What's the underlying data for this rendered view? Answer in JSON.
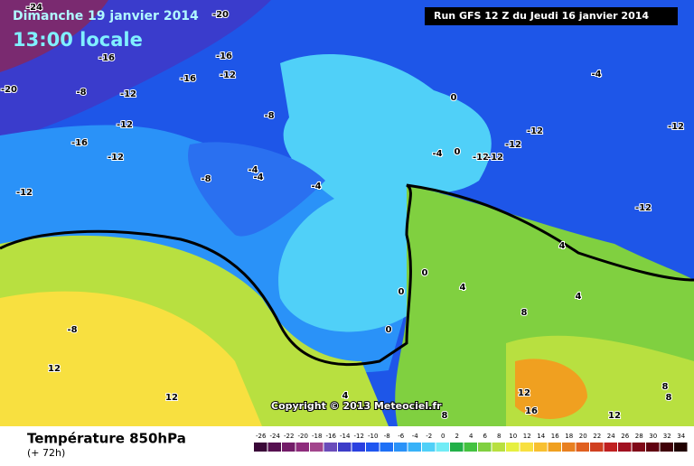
{
  "header": {
    "date": "Dimanche 19 janvier 2014",
    "time": "13:00 locale",
    "run": "Run GFS 12 Z du Jeudi 16 janvier 2014"
  },
  "map": {
    "labels": [
      "-24",
      "-20",
      "-16",
      "-16",
      "-12",
      "-16",
      "-20",
      "-8",
      "-12",
      "-8",
      "-12",
      "-16",
      "-12",
      "-8",
      "-4",
      "-4",
      "-4",
      "-12",
      "0",
      "-4",
      "0",
      "-12",
      "-12",
      "-12",
      "-12",
      "-4",
      "-12",
      "-12",
      "4",
      "0",
      "4",
      "0",
      "4",
      "8",
      "0",
      "-8",
      "12",
      "12",
      "4",
      "8",
      "12",
      "16",
      "12",
      "8",
      "8"
    ]
  },
  "copyright": "Copyright © 2013 Meteociel.fr",
  "footer": {
    "title": "Température 850hPa",
    "subtitle": "(+ 72h)"
  },
  "legend": {
    "labels": [
      -26,
      -24,
      -22,
      -20,
      -18,
      -16,
      -14,
      -12,
      -10,
      -8,
      -6,
      -4,
      -2,
      0,
      2,
      4,
      6,
      8,
      10,
      12,
      14,
      16,
      18,
      20,
      22,
      24,
      26,
      28,
      30,
      32,
      34
    ],
    "colors": [
      "#3a0838",
      "#561050",
      "#731c68",
      "#8e2c7c",
      "#a2458c",
      "#6a4cba",
      "#3c3cc8",
      "#2a40e0",
      "#1f56f0",
      "#1e70f6",
      "#2a92f8",
      "#38b2f8",
      "#50d0f8",
      "#72ecf6",
      "#22b048",
      "#44c240",
      "#80d040",
      "#b8e040",
      "#e6f040",
      "#f8e040",
      "#f8c030",
      "#f0a020",
      "#e88020",
      "#e06020",
      "#d04020",
      "#c02020",
      "#a01020",
      "#800818",
      "#600010",
      "#400008",
      "#200000"
    ]
  }
}
